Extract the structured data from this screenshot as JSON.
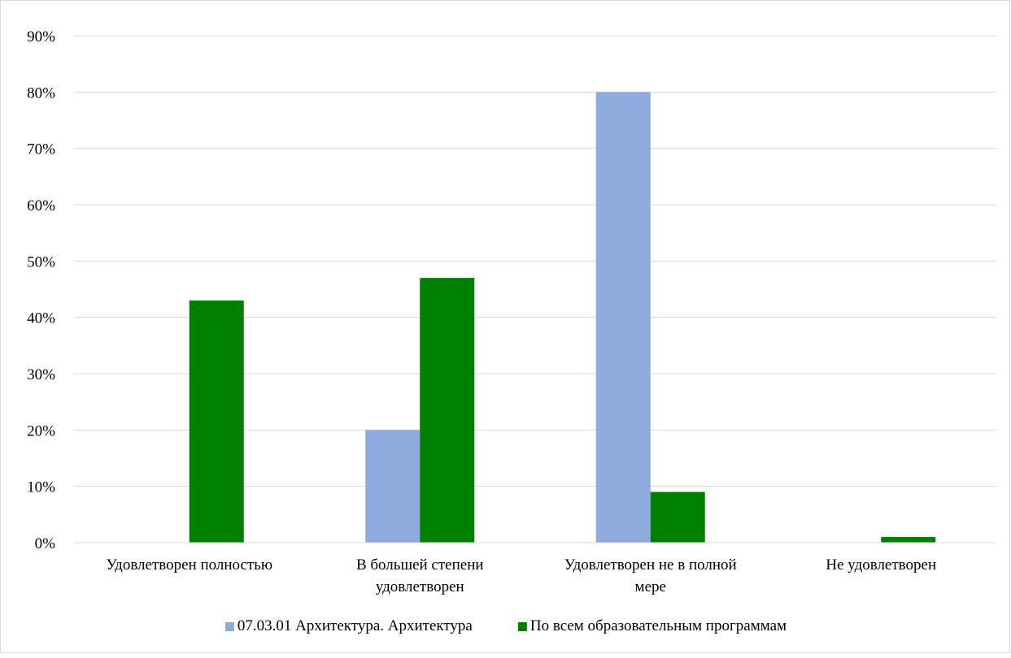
{
  "chart_data": {
    "type": "bar",
    "categories": [
      [
        "Удовлетворен полностью"
      ],
      [
        "В большей степени",
        "удовлетворен"
      ],
      [
        "Удовлетворен не в полной",
        "мере"
      ],
      [
        "Не удовлетворен"
      ]
    ],
    "series": [
      {
        "name": "07.03.01 Архитектура. Архитектура",
        "color": "#8faadc",
        "values": [
          0,
          20,
          80,
          0
        ]
      },
      {
        "name": "По всем образовательным программам",
        "color": "#008000",
        "values": [
          43,
          47,
          9,
          1
        ]
      }
    ],
    "ylim": [
      0,
      90
    ],
    "yticks": [
      0,
      10,
      20,
      30,
      40,
      50,
      60,
      70,
      80,
      90
    ],
    "tick_format": "{v}%",
    "grid": true,
    "legend": "bottom",
    "title": "",
    "xlabel": "",
    "ylabel": ""
  }
}
